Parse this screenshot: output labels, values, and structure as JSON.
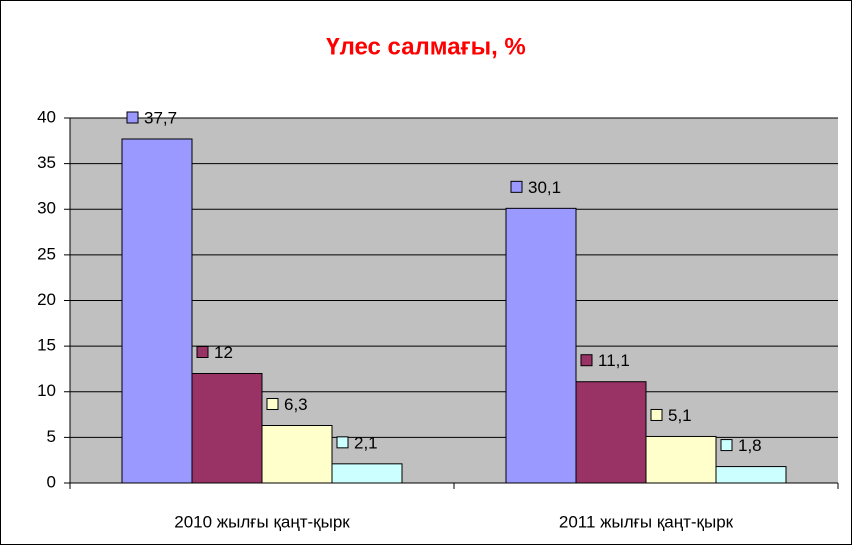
{
  "chart_data": {
    "type": "bar",
    "title": "Үлес салмағы, %",
    "categories": [
      "2010 жылғы қаңт-қырк",
      "2011 жылғы қаңт-қырк"
    ],
    "series": [
      {
        "color": "#9999ff",
        "values": [
          37.7,
          30.1
        ],
        "value_labels": [
          "37,7",
          "30,1"
        ]
      },
      {
        "color": "#993366",
        "values": [
          12,
          11.1
        ],
        "value_labels": [
          "12",
          "11,1"
        ]
      },
      {
        "color": "#ffffcc",
        "values": [
          6.3,
          5.1
        ],
        "value_labels": [
          "6,3",
          "5,1"
        ]
      },
      {
        "color": "#ccffff",
        "values": [
          2.1,
          1.8
        ],
        "value_labels": [
          "2,1",
          "1,8"
        ]
      }
    ],
    "ylim": [
      0,
      40
    ],
    "yticks": [
      0,
      5,
      10,
      15,
      20,
      25,
      30,
      35,
      40
    ],
    "grid": true
  }
}
